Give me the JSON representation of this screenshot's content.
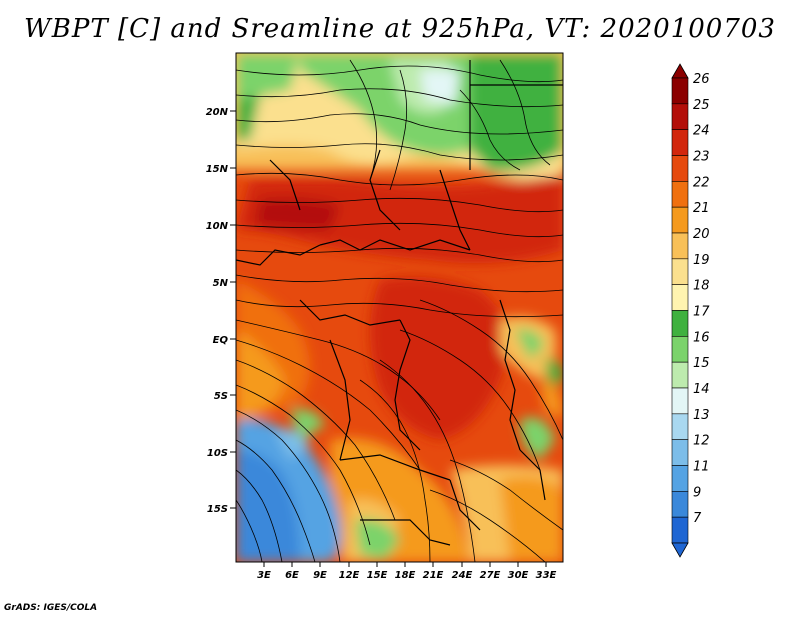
{
  "title": "WBPT [C] and Sreamline at 925hPa, VT: 2020100703",
  "credit": "GrADS: IGES/COLA",
  "axes": {
    "lat_labels": [
      "20N",
      "15N",
      "10N",
      "5N",
      "EQ",
      "5S",
      "10S",
      "15S"
    ],
    "lon_labels": [
      "3E",
      "6E",
      "9E",
      "12E",
      "15E",
      "18E",
      "21E",
      "24E",
      "27E",
      "30E",
      "33E"
    ]
  },
  "colorbar": {
    "labels": [
      "26",
      "25",
      "24",
      "23",
      "22",
      "21",
      "20",
      "19",
      "18",
      "17",
      "16",
      "15",
      "14",
      "13",
      "12",
      "11",
      "9",
      "7"
    ],
    "colors": [
      "#8b0000",
      "#b30f0a",
      "#d2260c",
      "#e64a0e",
      "#f0700f",
      "#f59a1e",
      "#f8c058",
      "#fbe08e",
      "#fff4b0",
      "#3fb13f",
      "#7bd36b",
      "#bdebae",
      "#e3f6f6",
      "#a9d8f0",
      "#7cbde9",
      "#55a3e3",
      "#3a88da",
      "#1f66d3"
    ]
  }
}
